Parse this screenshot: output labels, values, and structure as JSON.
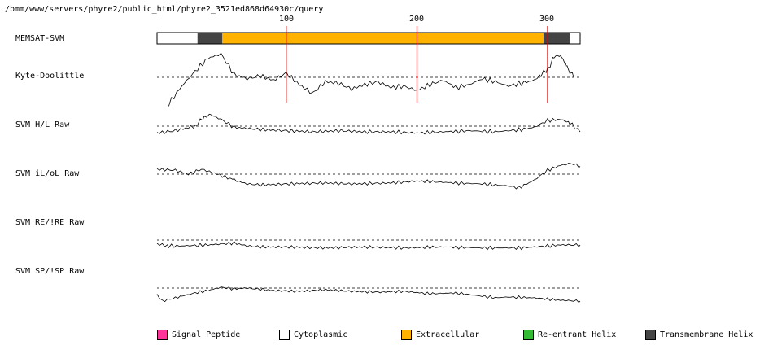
{
  "title_path": "/bmm/www/servers/phyre2/public_html/phyre2_3521ed868d64930c/query",
  "ruler": {
    "ticks": [
      "100",
      "200",
      "300"
    ]
  },
  "tracks": [
    {
      "id": "memsat",
      "label": "MEMSAT-SVM"
    },
    {
      "id": "kd",
      "label": "Kyte-Doolittle"
    },
    {
      "id": "hl",
      "label": "SVM H/L Raw"
    },
    {
      "id": "ilol",
      "label": "SVM iL/oL Raw"
    },
    {
      "id": "reire",
      "label": "SVM RE/!RE Raw"
    },
    {
      "id": "spisp",
      "label": "SVM SP/!SP Raw"
    }
  ],
  "chart_data": {
    "type": "line",
    "x_range": [
      1,
      325
    ],
    "topology_segments": [
      {
        "start": 1,
        "end": 32,
        "class": "Cytoplasmic"
      },
      {
        "start": 32,
        "end": 51,
        "class": "Transmembrane Helix"
      },
      {
        "start": 51,
        "end": 297,
        "class": "Extracellular"
      },
      {
        "start": 297,
        "end": 317,
        "class": "Transmembrane Helix"
      },
      {
        "start": 317,
        "end": 325,
        "class": "Cytoplasmic"
      }
    ],
    "markers": [
      100,
      200,
      300
    ],
    "profiles": {
      "kd": {
        "x": [
          10,
          20,
          30,
          40,
          50,
          60,
          70,
          80,
          90,
          100,
          110,
          120,
          130,
          140,
          150,
          160,
          170,
          180,
          190,
          200,
          210,
          220,
          230,
          240,
          250,
          260,
          270,
          280,
          290,
          295,
          300,
          305,
          310,
          315,
          320
        ],
        "y": [
          -1.8,
          -0.6,
          0.4,
          1.3,
          1.6,
          0.2,
          -0.1,
          0.1,
          -0.2,
          0.3,
          -0.5,
          -1.1,
          -0.3,
          -0.4,
          -0.8,
          -0.5,
          -0.3,
          -0.7,
          -0.6,
          -0.9,
          -0.5,
          -0.2,
          -0.7,
          -0.5,
          -0.1,
          -0.3,
          -0.6,
          -0.4,
          -0.2,
          0.2,
          0.5,
          1.4,
          1.5,
          0.7,
          0.0
        ]
      },
      "hl": {
        "x": [
          1,
          15,
          30,
          37,
          42,
          50,
          60,
          80,
          100,
          120,
          140,
          160,
          180,
          200,
          220,
          240,
          260,
          280,
          290,
          300,
          310,
          317,
          325
        ],
        "y": [
          -0.6,
          -0.4,
          0.0,
          0.8,
          1.0,
          0.6,
          -0.1,
          -0.3,
          -0.4,
          -0.5,
          -0.4,
          -0.5,
          -0.5,
          -0.6,
          -0.5,
          -0.4,
          -0.5,
          -0.3,
          -0.1,
          0.5,
          0.6,
          0.3,
          -0.5
        ]
      },
      "ilol": {
        "x": [
          1,
          15,
          25,
          35,
          45,
          60,
          70,
          80,
          100,
          130,
          150,
          180,
          200,
          230,
          250,
          270,
          278,
          290,
          300,
          310,
          318,
          325
        ],
        "y": [
          0.5,
          0.4,
          0.0,
          0.5,
          0.1,
          -0.6,
          -1.0,
          -1.1,
          -1.0,
          -0.9,
          -1.0,
          -0.9,
          -0.7,
          -0.9,
          -1.0,
          -1.2,
          -1.4,
          -0.6,
          0.4,
          0.9,
          1.1,
          0.8
        ]
      },
      "reire": {
        "x": [
          1,
          10,
          20,
          40,
          60,
          70,
          80,
          100,
          130,
          160,
          190,
          220,
          250,
          280,
          300,
          310,
          325
        ],
        "y": [
          -0.4,
          -0.6,
          -0.6,
          -0.5,
          -0.3,
          -0.6,
          -0.7,
          -0.7,
          -0.8,
          -0.7,
          -0.8,
          -0.7,
          -0.8,
          -0.8,
          -0.6,
          -0.5,
          -0.5
        ]
      },
      "spisp": {
        "x": [
          1,
          5,
          20,
          30,
          40,
          50,
          60,
          70,
          90,
          110,
          130,
          150,
          170,
          190,
          210,
          230,
          250,
          260,
          270,
          290,
          310,
          325
        ],
        "y": [
          -0.8,
          -1.6,
          -1.0,
          -0.6,
          -0.3,
          0.1,
          -0.1,
          0.0,
          -0.3,
          -0.4,
          -0.2,
          -0.4,
          -0.5,
          -0.4,
          -0.7,
          -0.6,
          -1.0,
          -1.2,
          -1.1,
          -1.2,
          -1.5,
          -1.6
        ]
      }
    }
  },
  "legend": [
    {
      "label": "Signal Peptide",
      "color": "#ff3399"
    },
    {
      "label": "Cytoplasmic",
      "color": "#ffffff"
    },
    {
      "label": "Extracellular",
      "color": "#ffb200"
    },
    {
      "label": "Re-entrant Helix",
      "color": "#33bb33"
    },
    {
      "label": "Transmembrane Helix",
      "color": "#444444"
    }
  ]
}
